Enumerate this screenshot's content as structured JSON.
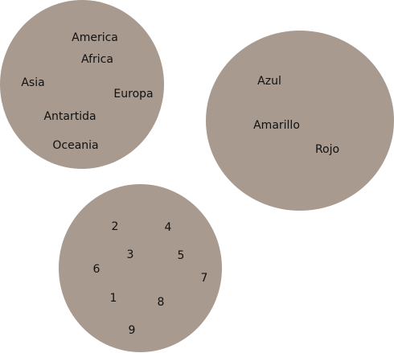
{
  "colors": {
    "set_fill": "#a89a8f",
    "text": "#111111",
    "background": "#ffffff"
  },
  "sets": {
    "continents": {
      "items": [
        "America",
        "Africa",
        "Asia",
        "Europa",
        "Antartida",
        "Oceania"
      ]
    },
    "colors": {
      "items": [
        "Azul",
        "Amarillo",
        "Rojo"
      ]
    },
    "numbers": {
      "items": [
        "2",
        "4",
        "3",
        "5",
        "6",
        "7",
        "1",
        "8",
        "9"
      ]
    }
  }
}
